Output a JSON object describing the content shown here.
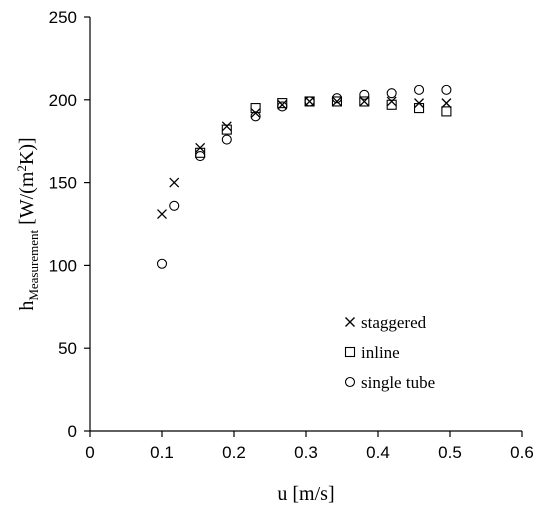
{
  "chart_data": {
    "type": "scatter",
    "xlabel": "u [m/s]",
    "ylabel": {
      "main": "h",
      "subscript": "Measurement",
      "unit_pre": "[W/(m",
      "unit_sup": "2",
      "unit_post": "K)]"
    },
    "xlim": [
      0,
      0.6
    ],
    "ylim": [
      0,
      250
    ],
    "xticks": [
      "0",
      "0.1",
      "0.2",
      "0.3",
      "0.4",
      "0.5",
      "0.6"
    ],
    "yticks": [
      "0",
      "50",
      "100",
      "150",
      "200",
      "250"
    ],
    "grid": false,
    "legend_position": "bottom-right",
    "series": [
      {
        "name": "staggered",
        "marker": "x",
        "points": [
          {
            "x": 0.1,
            "y": 131
          },
          {
            "x": 0.117,
            "y": 150
          },
          {
            "x": 0.153,
            "y": 171
          },
          {
            "x": 0.19,
            "y": 184
          },
          {
            "x": 0.23,
            "y": 192
          },
          {
            "x": 0.267,
            "y": 197
          },
          {
            "x": 0.305,
            "y": 199
          },
          {
            "x": 0.343,
            "y": 199
          },
          {
            "x": 0.381,
            "y": 199
          },
          {
            "x": 0.419,
            "y": 199
          },
          {
            "x": 0.457,
            "y": 198
          },
          {
            "x": 0.495,
            "y": 198
          }
        ]
      },
      {
        "name": "inline",
        "marker": "square",
        "points": [
          {
            "x": 0.153,
            "y": 168
          },
          {
            "x": 0.19,
            "y": 182
          },
          {
            "x": 0.23,
            "y": 195
          },
          {
            "x": 0.267,
            "y": 198
          },
          {
            "x": 0.305,
            "y": 199
          },
          {
            "x": 0.343,
            "y": 199
          },
          {
            "x": 0.381,
            "y": 199
          },
          {
            "x": 0.419,
            "y": 197
          },
          {
            "x": 0.457,
            "y": 195
          },
          {
            "x": 0.495,
            "y": 193
          }
        ]
      },
      {
        "name": "single tube",
        "marker": "circle",
        "points": [
          {
            "x": 0.1,
            "y": 101
          },
          {
            "x": 0.117,
            "y": 136
          },
          {
            "x": 0.153,
            "y": 166
          },
          {
            "x": 0.19,
            "y": 176
          },
          {
            "x": 0.23,
            "y": 190
          },
          {
            "x": 0.267,
            "y": 196
          },
          {
            "x": 0.305,
            "y": 199
          },
          {
            "x": 0.343,
            "y": 201
          },
          {
            "x": 0.381,
            "y": 203
          },
          {
            "x": 0.419,
            "y": 204
          },
          {
            "x": 0.457,
            "y": 206
          },
          {
            "x": 0.495,
            "y": 206
          }
        ]
      }
    ]
  }
}
